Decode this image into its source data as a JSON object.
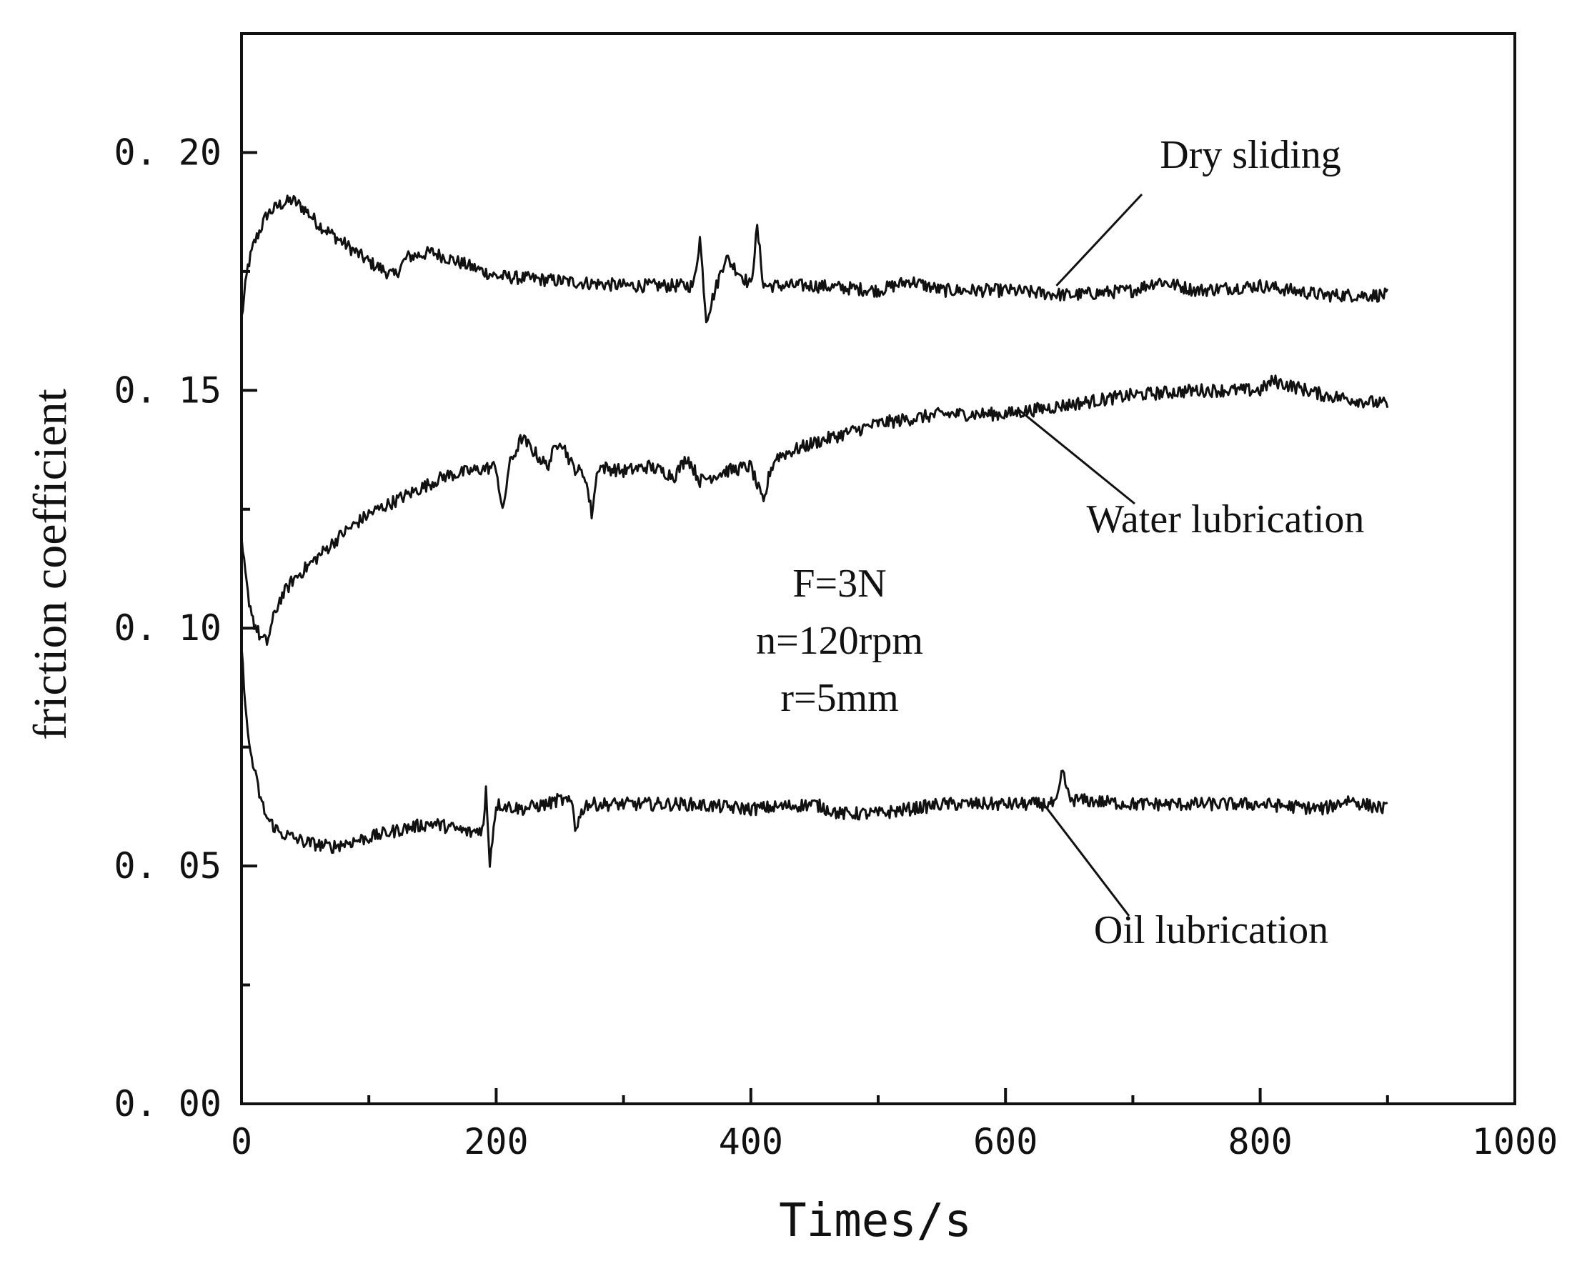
{
  "chart_data": {
    "type": "line",
    "title": "",
    "xlabel": "Times/s",
    "ylabel": "friction coefficient",
    "xlim": [
      0,
      1000
    ],
    "ylim": [
      0,
      0.225
    ],
    "x_ticks": [
      0,
      200,
      400,
      600,
      800,
      1000
    ],
    "x_tick_labels": [
      "0",
      "200",
      "400",
      "600",
      "800",
      "1000"
    ],
    "y_ticks": [
      0,
      0.05,
      0.1,
      0.15,
      0.2
    ],
    "y_tick_labels": [
      "0. 00",
      "0. 05",
      "0. 10",
      "0. 15",
      "0. 20"
    ],
    "grid": false,
    "conditions": [
      "F=3N",
      "n=120rpm",
      "r=5mm"
    ],
    "series": [
      {
        "name": "Dry sliding",
        "color": "#111111",
        "x": [
          0,
          5,
          10,
          20,
          30,
          40,
          50,
          60,
          80,
          100,
          120,
          130,
          150,
          170,
          200,
          250,
          300,
          355,
          360,
          365,
          380,
          400,
          405,
          410,
          450,
          500,
          525,
          550,
          600,
          650,
          700,
          720,
          750,
          800,
          850,
          900
        ],
        "values": [
          0.165,
          0.176,
          0.181,
          0.187,
          0.189,
          0.19,
          0.188,
          0.185,
          0.181,
          0.177,
          0.174,
          0.178,
          0.179,
          0.177,
          0.174,
          0.173,
          0.172,
          0.172,
          0.182,
          0.165,
          0.178,
          0.172,
          0.184,
          0.172,
          0.172,
          0.171,
          0.173,
          0.171,
          0.171,
          0.17,
          0.171,
          0.173,
          0.171,
          0.172,
          0.17,
          0.17
        ],
        "label_anchor": [
          640,
          0.172
        ]
      },
      {
        "name": "Water lubrication",
        "color": "#111111",
        "x": [
          0,
          5,
          10,
          15,
          20,
          25,
          30,
          40,
          60,
          80,
          100,
          130,
          160,
          180,
          200,
          205,
          210,
          220,
          240,
          250,
          260,
          270,
          275,
          280,
          300,
          320,
          340,
          350,
          360,
          380,
          400,
          410,
          415,
          420,
          450,
          500,
          550,
          600,
          650,
          700,
          750,
          800,
          810,
          850,
          900
        ],
        "values": [
          0.118,
          0.107,
          0.101,
          0.098,
          0.097,
          0.102,
          0.106,
          0.11,
          0.115,
          0.12,
          0.124,
          0.128,
          0.132,
          0.133,
          0.134,
          0.124,
          0.134,
          0.14,
          0.134,
          0.14,
          0.134,
          0.132,
          0.124,
          0.134,
          0.133,
          0.134,
          0.132,
          0.136,
          0.131,
          0.133,
          0.134,
          0.126,
          0.133,
          0.136,
          0.139,
          0.143,
          0.145,
          0.145,
          0.147,
          0.149,
          0.15,
          0.15,
          0.152,
          0.149,
          0.147
        ],
        "label_anchor": [
          610,
          0.146
        ]
      },
      {
        "name": "Oil lubrication",
        "color": "#111111",
        "x": [
          0,
          3,
          5,
          10,
          15,
          20,
          30,
          50,
          70,
          100,
          130,
          150,
          180,
          190,
          192,
          195,
          200,
          220,
          240,
          250,
          260,
          262,
          270,
          300,
          350,
          400,
          450,
          470,
          500,
          550,
          600,
          640,
          645,
          650,
          700,
          750,
          800,
          850,
          870,
          880,
          900
        ],
        "values": [
          0.095,
          0.085,
          0.077,
          0.07,
          0.064,
          0.06,
          0.057,
          0.055,
          0.054,
          0.056,
          0.058,
          0.059,
          0.057,
          0.058,
          0.066,
          0.051,
          0.063,
          0.062,
          0.063,
          0.064,
          0.063,
          0.058,
          0.063,
          0.063,
          0.063,
          0.062,
          0.063,
          0.061,
          0.061,
          0.063,
          0.063,
          0.063,
          0.07,
          0.064,
          0.063,
          0.063,
          0.063,
          0.062,
          0.064,
          0.063,
          0.062
        ],
        "label_anchor": [
          630,
          0.063
        ]
      }
    ]
  }
}
